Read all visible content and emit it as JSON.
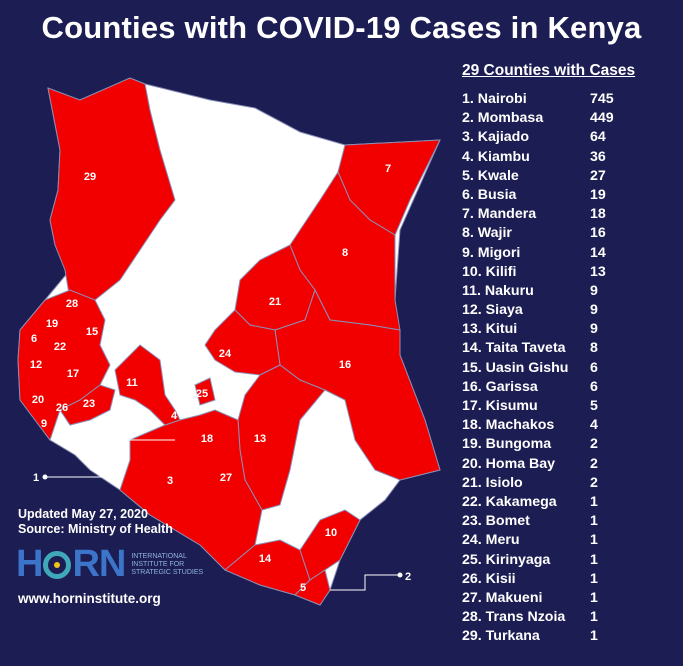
{
  "title": "Counties with COVID-19 Cases in Kenya",
  "legend": {
    "heading": "29 Counties with Cases",
    "counties": [
      {
        "name": "1. Nairobi",
        "cases": "745"
      },
      {
        "name": "2. Mombasa",
        "cases": "449"
      },
      {
        "name": "3. Kajiado",
        "cases": "64"
      },
      {
        "name": "4. Kiambu",
        "cases": "36"
      },
      {
        "name": "5. Kwale",
        "cases": "27"
      },
      {
        "name": "6. Busia",
        "cases": "19"
      },
      {
        "name": "7. Mandera",
        "cases": "18"
      },
      {
        "name": "8. Wajir",
        "cases": "16"
      },
      {
        "name": "9. Migori",
        "cases": "14"
      },
      {
        "name": "10. Kilifi",
        "cases": "13"
      },
      {
        "name": "11. Nakuru",
        "cases": "9"
      },
      {
        "name": "12. Siaya",
        "cases": "9"
      },
      {
        "name": "13. Kitui",
        "cases": "9"
      },
      {
        "name": "14. Taita Taveta",
        "cases": "8"
      },
      {
        "name": "15. Uasin Gishu",
        "cases": "6"
      },
      {
        "name": "16. Garissa",
        "cases": "6"
      },
      {
        "name": "17. Kisumu",
        "cases": "5"
      },
      {
        "name": "18. Machakos",
        "cases": "4"
      },
      {
        "name": "19. Bungoma",
        "cases": "2"
      },
      {
        "name": "20. Homa Bay",
        "cases": "2"
      },
      {
        "name": "21. Isiolo",
        "cases": "2"
      },
      {
        "name": "22. Kakamega",
        "cases": "1"
      },
      {
        "name": "23. Bomet",
        "cases": "1"
      },
      {
        "name": "24. Meru",
        "cases": "1"
      },
      {
        "name": "25. Kirinyaga",
        "cases": "1"
      },
      {
        "name": "26. Kisii",
        "cases": "1"
      },
      {
        "name": "27. Makueni",
        "cases": "1"
      },
      {
        "name": "28. Trans Nzoia",
        "cases": "1"
      },
      {
        "name": "29. Turkana",
        "cases": "1"
      }
    ]
  },
  "map": {
    "callout_1": "1",
    "callout_2": "2",
    "labels": [
      "29",
      "7",
      "8",
      "21",
      "16",
      "24",
      "28",
      "19",
      "15",
      "6",
      "22",
      "12",
      "17",
      "11",
      "25",
      "20",
      "26",
      "23",
      "9",
      "4",
      "18",
      "13",
      "3",
      "27",
      "10",
      "14",
      "5"
    ]
  },
  "footer": {
    "updated": "Updated May  27, 2020",
    "source": "Source: Ministry of Health",
    "logo_word_1": "H",
    "logo_word_2": "RN",
    "logo_subtitle": "International Institute for Strategic Studies",
    "website": "www.horninstitute.org"
  },
  "colors": {
    "background": "#1c1d52",
    "affected": "#f20000",
    "unaffected": "#ffffff",
    "border": "#8a8fb8"
  }
}
